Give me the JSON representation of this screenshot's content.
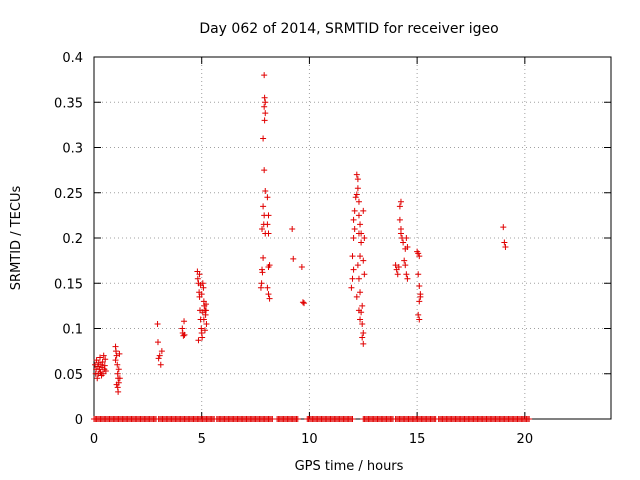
{
  "chart_data": {
    "type": "scatter",
    "title": "Day 062 of 2014, SRMTID for receiver igeo",
    "xlabel": "GPS time / hours",
    "ylabel": "SRMTID / TECUs",
    "xlim": [
      0,
      24
    ],
    "ylim": [
      0,
      0.4
    ],
    "xticks": [
      0,
      5,
      10,
      15,
      20
    ],
    "xtick_labels": [
      "0",
      "5",
      "10",
      "15",
      "20"
    ],
    "yticks": [
      0,
      0.05,
      0.1,
      0.15,
      0.2,
      0.25,
      0.3,
      0.35,
      0.4
    ],
    "ytick_labels": [
      "0",
      "0.05",
      "0.1",
      "0.15",
      "0.2",
      "0.25",
      "0.3",
      "0.35",
      "0.4"
    ],
    "grid": true,
    "marker": "+",
    "color": "#e00000",
    "zero_baseline_ranges": [
      [
        0.0,
        2.9
      ],
      [
        3.0,
        5.6
      ],
      [
        5.7,
        8.3
      ],
      [
        8.5,
        9.5
      ],
      [
        9.9,
        12.0
      ],
      [
        12.5,
        13.9
      ],
      [
        14.0,
        15.9
      ],
      [
        16.0,
        20.2
      ]
    ],
    "points": [
      [
        0.05,
        0.06
      ],
      [
        0.08,
        0.05
      ],
      [
        0.1,
        0.055
      ],
      [
        0.12,
        0.065
      ],
      [
        0.15,
        0.045
      ],
      [
        0.18,
        0.058
      ],
      [
        0.2,
        0.05
      ],
      [
        0.22,
        0.062
      ],
      [
        0.25,
        0.055
      ],
      [
        0.28,
        0.068
      ],
      [
        0.3,
        0.052
      ],
      [
        0.32,
        0.06
      ],
      [
        0.35,
        0.048
      ],
      [
        0.38,
        0.057
      ],
      [
        0.4,
        0.063
      ],
      [
        0.42,
        0.05
      ],
      [
        0.45,
        0.07
      ],
      [
        0.48,
        0.055
      ],
      [
        0.5,
        0.059
      ],
      [
        0.52,
        0.066
      ],
      [
        0.55,
        0.053
      ],
      [
        1.0,
        0.08
      ],
      [
        1.02,
        0.075
      ],
      [
        1.05,
        0.07
      ],
      [
        1.08,
        0.06
      ],
      [
        1.1,
        0.05
      ],
      [
        1.12,
        0.045
      ],
      [
        1.15,
        0.04
      ],
      [
        1.05,
        0.038
      ],
      [
        1.1,
        0.035
      ],
      [
        1.12,
        0.03
      ],
      [
        1.15,
        0.055
      ],
      [
        1.2,
        0.045
      ],
      [
        1.0,
        0.065
      ],
      [
        1.18,
        0.072
      ],
      [
        2.95,
        0.105
      ],
      [
        2.97,
        0.085
      ],
      [
        3.0,
        0.067
      ],
      [
        3.05,
        0.07
      ],
      [
        3.1,
        0.06
      ],
      [
        3.15,
        0.075
      ],
      [
        4.1,
        0.1
      ],
      [
        4.12,
        0.095
      ],
      [
        4.15,
        0.092
      ],
      [
        4.18,
        0.108
      ],
      [
        4.2,
        0.093
      ],
      [
        4.8,
        0.163
      ],
      [
        4.82,
        0.155
      ],
      [
        4.85,
        0.15
      ],
      [
        4.88,
        0.14
      ],
      [
        4.9,
        0.135
      ],
      [
        4.92,
        0.12
      ],
      [
        4.95,
        0.11
      ],
      [
        4.98,
        0.1
      ],
      [
        5.0,
        0.095
      ],
      [
        5.02,
        0.09
      ],
      [
        5.05,
        0.15
      ],
      [
        5.08,
        0.145
      ],
      [
        5.1,
        0.13
      ],
      [
        5.12,
        0.125
      ],
      [
        5.15,
        0.12
      ],
      [
        5.18,
        0.115
      ],
      [
        5.2,
        0.12
      ],
      [
        5.22,
        0.105
      ],
      [
        4.85,
        0.087
      ],
      [
        4.9,
        0.16
      ],
      [
        5.0,
        0.138
      ],
      [
        5.1,
        0.11
      ],
      [
        5.15,
        0.098
      ],
      [
        5.2,
        0.127
      ],
      [
        4.95,
        0.148
      ],
      [
        5.05,
        0.118
      ],
      [
        7.75,
        0.145
      ],
      [
        7.78,
        0.15
      ],
      [
        7.8,
        0.165
      ],
      [
        7.82,
        0.162
      ],
      [
        7.85,
        0.178
      ],
      [
        7.9,
        0.38
      ],
      [
        7.92,
        0.355
      ],
      [
        7.95,
        0.35
      ],
      [
        7.9,
        0.345
      ],
      [
        7.95,
        0.338
      ],
      [
        7.92,
        0.33
      ],
      [
        7.85,
        0.31
      ],
      [
        7.9,
        0.275
      ],
      [
        7.95,
        0.252
      ],
      [
        7.85,
        0.235
      ],
      [
        7.9,
        0.225
      ],
      [
        7.88,
        0.215
      ],
      [
        7.95,
        0.205
      ],
      [
        7.8,
        0.21
      ],
      [
        8.05,
        0.245
      ],
      [
        8.1,
        0.225
      ],
      [
        8.05,
        0.215
      ],
      [
        8.1,
        0.205
      ],
      [
        8.15,
        0.17
      ],
      [
        8.1,
        0.168
      ],
      [
        8.05,
        0.145
      ],
      [
        8.1,
        0.138
      ],
      [
        8.15,
        0.133
      ],
      [
        9.2,
        0.21
      ],
      [
        9.25,
        0.177
      ],
      [
        9.65,
        0.168
      ],
      [
        9.7,
        0.129
      ],
      [
        9.75,
        0.128
      ],
      [
        11.95,
        0.145
      ],
      [
        12.0,
        0.155
      ],
      [
        12.05,
        0.165
      ],
      [
        12.0,
        0.18
      ],
      [
        12.05,
        0.2
      ],
      [
        12.1,
        0.21
      ],
      [
        12.05,
        0.22
      ],
      [
        12.1,
        0.23
      ],
      [
        12.15,
        0.245
      ],
      [
        12.2,
        0.248
      ],
      [
        12.25,
        0.265
      ],
      [
        12.2,
        0.27
      ],
      [
        12.25,
        0.255
      ],
      [
        12.3,
        0.24
      ],
      [
        12.3,
        0.225
      ],
      [
        12.35,
        0.215
      ],
      [
        12.3,
        0.205
      ],
      [
        12.4,
        0.195
      ],
      [
        12.35,
        0.18
      ],
      [
        12.25,
        0.17
      ],
      [
        12.3,
        0.155
      ],
      [
        12.35,
        0.14
      ],
      [
        12.3,
        0.12
      ],
      [
        12.4,
        0.118
      ],
      [
        12.35,
        0.11
      ],
      [
        12.45,
        0.105
      ],
      [
        12.5,
        0.095
      ],
      [
        12.45,
        0.09
      ],
      [
        12.5,
        0.083
      ],
      [
        12.5,
        0.23
      ],
      [
        12.55,
        0.2
      ],
      [
        12.5,
        0.175
      ],
      [
        12.55,
        0.16
      ],
      [
        12.45,
        0.125
      ],
      [
        12.2,
        0.135
      ],
      [
        12.4,
        0.205
      ],
      [
        14.0,
        0.17
      ],
      [
        14.05,
        0.165
      ],
      [
        14.1,
        0.16
      ],
      [
        14.15,
        0.168
      ],
      [
        14.2,
        0.235
      ],
      [
        14.25,
        0.24
      ],
      [
        14.2,
        0.22
      ],
      [
        14.25,
        0.21
      ],
      [
        14.3,
        0.2
      ],
      [
        14.25,
        0.205
      ],
      [
        14.35,
        0.195
      ],
      [
        14.4,
        0.175
      ],
      [
        14.45,
        0.17
      ],
      [
        14.5,
        0.2
      ],
      [
        14.55,
        0.19
      ],
      [
        14.5,
        0.16
      ],
      [
        14.55,
        0.155
      ],
      [
        14.45,
        0.188
      ],
      [
        15.0,
        0.185
      ],
      [
        15.05,
        0.183
      ],
      [
        15.1,
        0.18
      ],
      [
        15.05,
        0.16
      ],
      [
        15.1,
        0.147
      ],
      [
        15.15,
        0.135
      ],
      [
        15.1,
        0.13
      ],
      [
        15.05,
        0.115
      ],
      [
        15.1,
        0.11
      ],
      [
        15.15,
        0.138
      ],
      [
        19.0,
        0.212
      ],
      [
        19.05,
        0.195
      ],
      [
        19.1,
        0.19
      ]
    ]
  }
}
